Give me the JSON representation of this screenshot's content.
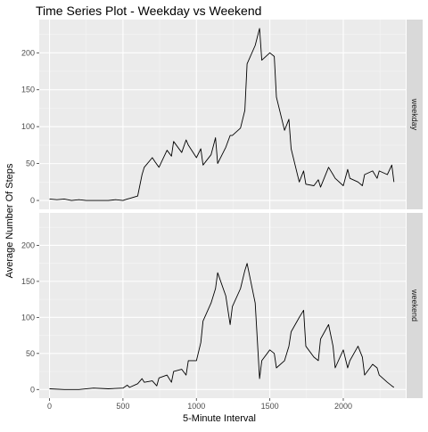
{
  "chart_data": {
    "type": "line",
    "title": "Time Series Plot - Weekday vs Weekend",
    "xlabel": "5-Minute Interval",
    "ylabel": "Average Number Of Steps",
    "xlim": [
      -70,
      2425
    ],
    "ylim": [
      -12,
      245
    ],
    "x_ticks": [
      0,
      500,
      1000,
      1500,
      2000
    ],
    "y_ticks": [
      0,
      50,
      100,
      150,
      200
    ],
    "grid": true,
    "colors": {
      "panel": "#ebebeb",
      "grid_major": "#ffffff",
      "strip": "#d9d9d9",
      "line": "#000000"
    },
    "panels": [
      {
        "name": "weekday",
        "points": [
          [
            0,
            2
          ],
          [
            50,
            1
          ],
          [
            100,
            2
          ],
          [
            150,
            0
          ],
          [
            200,
            1
          ],
          [
            250,
            0
          ],
          [
            300,
            0
          ],
          [
            350,
            0
          ],
          [
            400,
            0
          ],
          [
            450,
            1
          ],
          [
            500,
            0
          ],
          [
            530,
            2
          ],
          [
            550,
            3
          ],
          [
            600,
            6
          ],
          [
            630,
            35
          ],
          [
            645,
            45
          ],
          [
            700,
            58
          ],
          [
            720,
            52
          ],
          [
            745,
            45
          ],
          [
            800,
            68
          ],
          [
            830,
            60
          ],
          [
            845,
            80
          ],
          [
            900,
            65
          ],
          [
            930,
            82
          ],
          [
            945,
            75
          ],
          [
            1000,
            58
          ],
          [
            1030,
            70
          ],
          [
            1045,
            48
          ],
          [
            1100,
            62
          ],
          [
            1130,
            85
          ],
          [
            1145,
            50
          ],
          [
            1200,
            72
          ],
          [
            1230,
            88
          ],
          [
            1245,
            88
          ],
          [
            1300,
            98
          ],
          [
            1330,
            122
          ],
          [
            1345,
            185
          ],
          [
            1400,
            210
          ],
          [
            1430,
            233
          ],
          [
            1445,
            190
          ],
          [
            1500,
            200
          ],
          [
            1530,
            195
          ],
          [
            1545,
            140
          ],
          [
            1600,
            95
          ],
          [
            1630,
            110
          ],
          [
            1645,
            70
          ],
          [
            1700,
            25
          ],
          [
            1730,
            40
          ],
          [
            1745,
            22
          ],
          [
            1800,
            20
          ],
          [
            1830,
            28
          ],
          [
            1845,
            18
          ],
          [
            1900,
            45
          ],
          [
            1930,
            35
          ],
          [
            1945,
            30
          ],
          [
            2000,
            20
          ],
          [
            2030,
            42
          ],
          [
            2045,
            30
          ],
          [
            2100,
            25
          ],
          [
            2130,
            20
          ],
          [
            2145,
            35
          ],
          [
            2200,
            40
          ],
          [
            2230,
            30
          ],
          [
            2245,
            40
          ],
          [
            2300,
            35
          ],
          [
            2330,
            48
          ],
          [
            2345,
            25
          ]
        ]
      },
      {
        "name": "weekend",
        "points": [
          [
            0,
            1
          ],
          [
            100,
            0
          ],
          [
            200,
            0
          ],
          [
            300,
            2
          ],
          [
            400,
            1
          ],
          [
            500,
            2
          ],
          [
            530,
            6
          ],
          [
            545,
            3
          ],
          [
            600,
            8
          ],
          [
            630,
            15
          ],
          [
            645,
            10
          ],
          [
            700,
            12
          ],
          [
            730,
            5
          ],
          [
            745,
            16
          ],
          [
            800,
            20
          ],
          [
            830,
            10
          ],
          [
            845,
            25
          ],
          [
            900,
            28
          ],
          [
            930,
            20
          ],
          [
            945,
            40
          ],
          [
            1000,
            40
          ],
          [
            1030,
            65
          ],
          [
            1045,
            95
          ],
          [
            1100,
            120
          ],
          [
            1130,
            140
          ],
          [
            1145,
            162
          ],
          [
            1200,
            130
          ],
          [
            1230,
            90
          ],
          [
            1245,
            115
          ],
          [
            1300,
            140
          ],
          [
            1330,
            165
          ],
          [
            1345,
            175
          ],
          [
            1400,
            120
          ],
          [
            1430,
            15
          ],
          [
            1445,
            40
          ],
          [
            1500,
            55
          ],
          [
            1530,
            50
          ],
          [
            1545,
            30
          ],
          [
            1600,
            40
          ],
          [
            1630,
            60
          ],
          [
            1645,
            80
          ],
          [
            1700,
            100
          ],
          [
            1730,
            110
          ],
          [
            1745,
            60
          ],
          [
            1800,
            45
          ],
          [
            1830,
            40
          ],
          [
            1845,
            70
          ],
          [
            1900,
            90
          ],
          [
            1930,
            60
          ],
          [
            1945,
            30
          ],
          [
            2000,
            55
          ],
          [
            2030,
            30
          ],
          [
            2045,
            40
          ],
          [
            2100,
            60
          ],
          [
            2130,
            45
          ],
          [
            2145,
            20
          ],
          [
            2200,
            35
          ],
          [
            2230,
            30
          ],
          [
            2245,
            20
          ],
          [
            2300,
            10
          ],
          [
            2330,
            5
          ],
          [
            2345,
            3
          ]
        ]
      }
    ]
  }
}
